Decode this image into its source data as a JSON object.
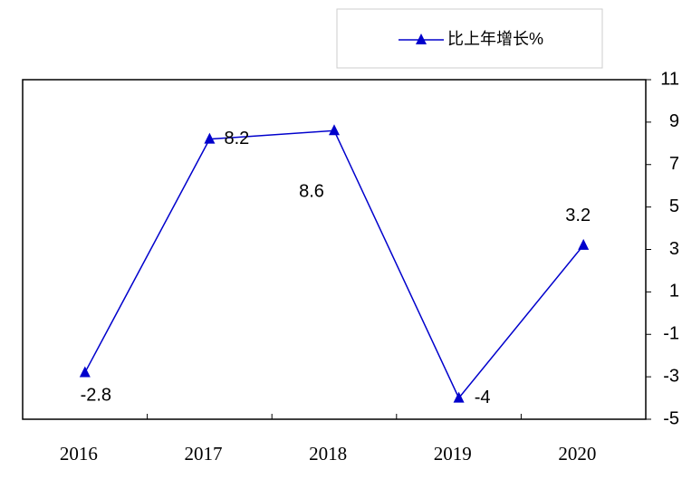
{
  "chart_data": {
    "type": "line",
    "categories": [
      "2016",
      "2017",
      "2018",
      "2019",
      "2020"
    ],
    "series": [
      {
        "name": "比上年增长%",
        "color": "#0000cc",
        "values": [
          -2.8,
          8.2,
          8.6,
          -4,
          3.2
        ]
      }
    ],
    "ylim": [
      -5,
      11
    ],
    "yticks": [
      -5,
      -3,
      -1,
      1,
      3,
      5,
      7,
      9,
      11
    ],
    "grid": false
  }
}
